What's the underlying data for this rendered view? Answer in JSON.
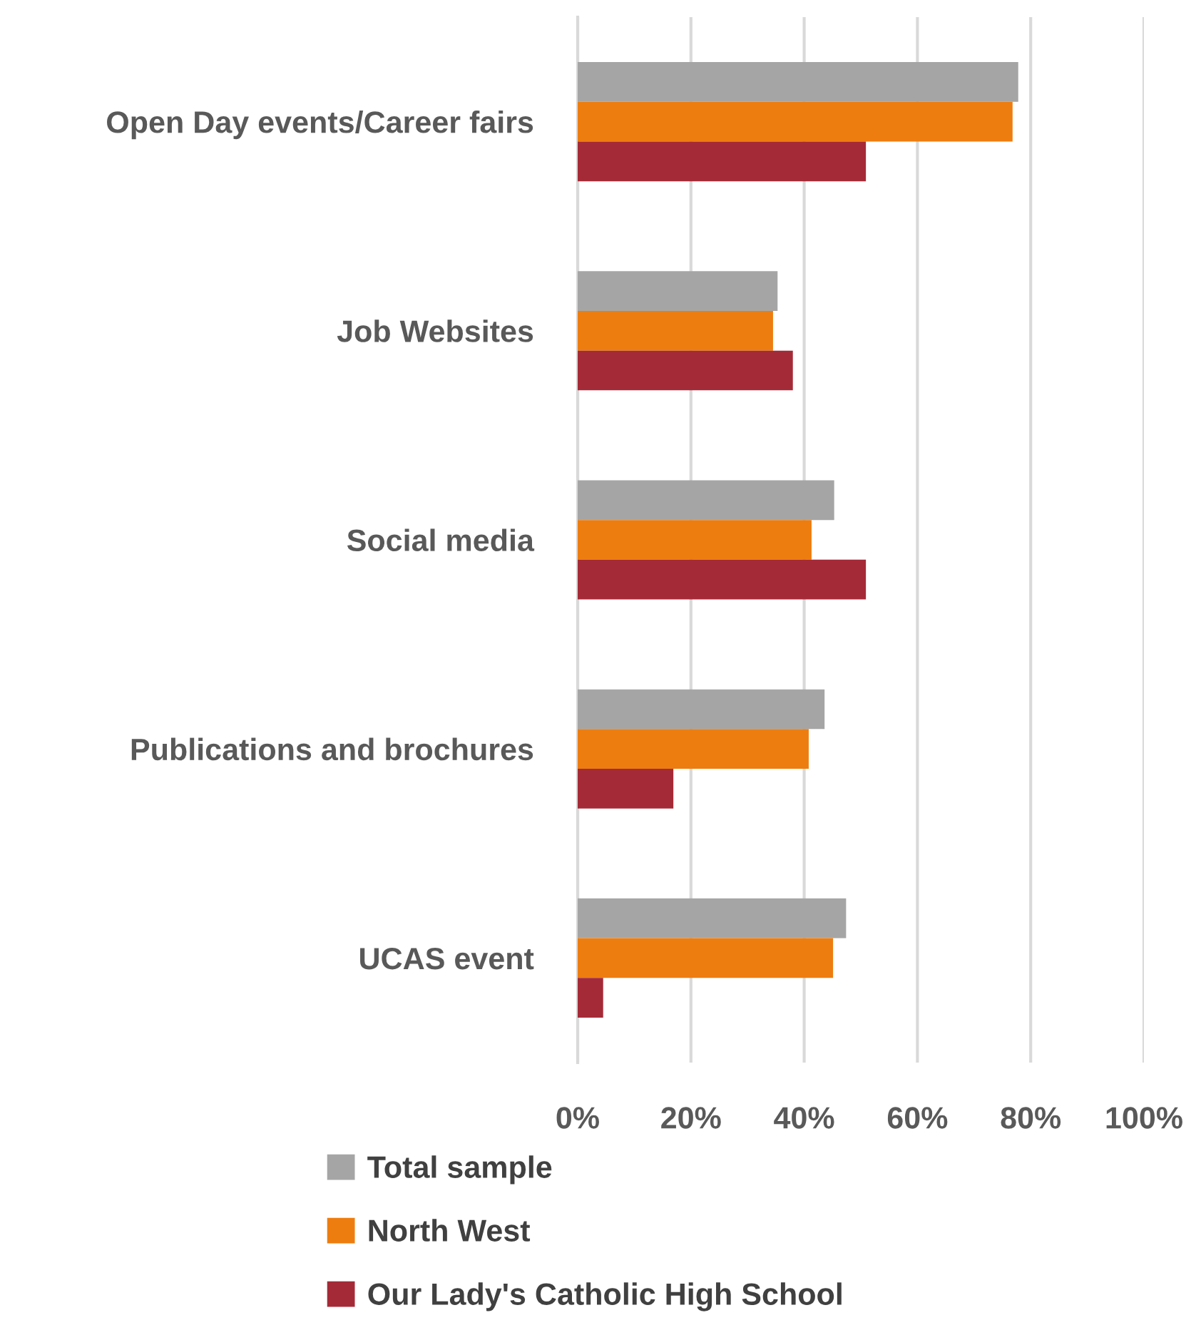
{
  "chart_data": {
    "type": "bar",
    "orientation": "horizontal",
    "categories": [
      "Open Day events/Career fairs",
      "Job Websites",
      "Social media",
      "Publications and brochures",
      "UCAS event"
    ],
    "series": [
      {
        "name": "Total sample",
        "color": "#a5a5a5",
        "values": [
          77.8,
          35.3,
          45.3,
          43.6,
          47.4
        ]
      },
      {
        "name": "North West",
        "color": "#ed7d0f",
        "values": [
          76.8,
          34.5,
          41.3,
          40.8,
          45.1
        ]
      },
      {
        "name": "Our Lady's Catholic High School",
        "color": "#a52a37",
        "values": [
          50.9,
          38.0,
          50.9,
          16.9,
          4.5
        ]
      }
    ],
    "xlim": [
      0,
      100
    ],
    "xticks": [
      {
        "value": 0,
        "label": "0%"
      },
      {
        "value": 20,
        "label": "20%"
      },
      {
        "value": 40,
        "label": "40%"
      },
      {
        "value": 60,
        "label": "60%"
      },
      {
        "value": 80,
        "label": "80%"
      },
      {
        "value": 100,
        "label": "100%"
      }
    ],
    "grid": "x",
    "legend": "bottom"
  }
}
